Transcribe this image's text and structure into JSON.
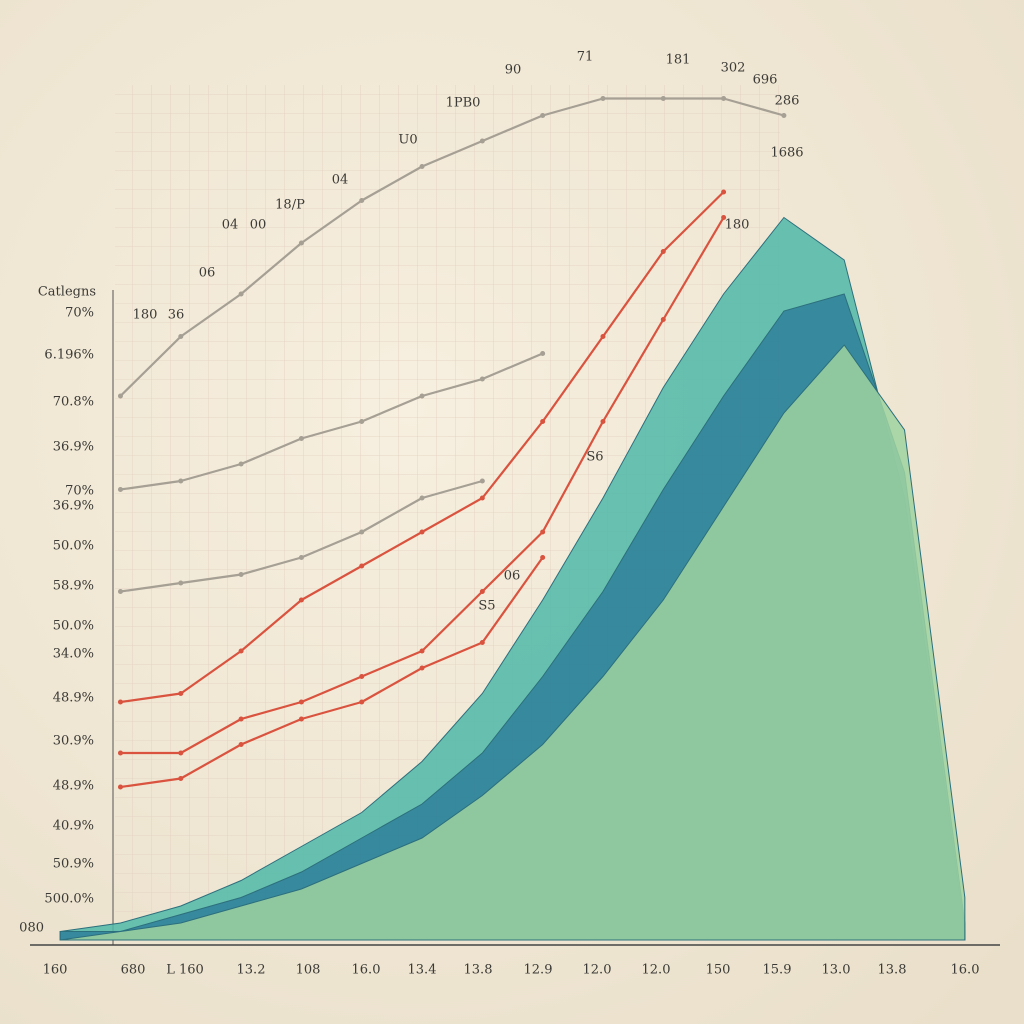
{
  "chart_data": {
    "type": "line",
    "categories": [
      "160",
      "680",
      "L 160",
      "13.2",
      "108",
      "16.0",
      "13.4",
      "13.8",
      "12.9",
      "12.0",
      "12.0",
      "150",
      "15.9",
      "13.0",
      "13.8",
      "16.0"
    ],
    "y_labels": [
      "Catlegns",
      "70%",
      "6.196%",
      "70.8%",
      "36.9%",
      "70%",
      "36.9%",
      "50.0%",
      "58.9%",
      "50.0%",
      "34.0%",
      "48.9%",
      "30.9%",
      "48.9%",
      "40.9%",
      "50.9%",
      "500.0%",
      "080"
    ],
    "annotations": [
      "90",
      "71",
      "181",
      "302",
      "696",
      "286",
      "1PB0",
      "U0",
      "04",
      "18/P",
      "04",
      "00",
      "06",
      "36",
      "180",
      "1686",
      "180",
      "S6",
      "06",
      "S5"
    ],
    "ylim": [
      0,
      100
    ],
    "series": [
      {
        "color": "#a59f94",
        "kind": "line",
        "values": [
          null,
          64,
          71,
          76,
          82,
          87,
          91,
          94,
          97,
          99,
          99,
          99,
          97,
          null,
          null,
          null
        ]
      },
      {
        "color": "#a59f94",
        "kind": "line",
        "values": [
          null,
          53,
          54,
          56,
          59,
          61,
          64,
          66,
          69,
          null,
          null,
          null,
          null,
          null,
          null,
          null
        ]
      },
      {
        "color": "#a59f94",
        "kind": "line",
        "values": [
          null,
          41,
          42,
          43,
          45,
          48,
          52,
          54,
          null,
          null,
          null,
          null,
          null,
          null,
          null,
          null
        ]
      },
      {
        "color": "#d9533f",
        "kind": "line",
        "values": [
          null,
          28,
          29,
          34,
          40,
          44,
          48,
          52,
          61,
          71,
          81,
          88,
          null,
          null,
          null,
          null
        ]
      },
      {
        "color": "#d9533f",
        "kind": "line",
        "values": [
          null,
          22,
          22,
          26,
          28,
          31,
          34,
          41,
          48,
          61,
          73,
          85,
          null,
          null,
          null,
          null
        ]
      },
      {
        "color": "#d9533f",
        "kind": "line",
        "values": [
          null,
          18,
          19,
          23,
          26,
          28,
          32,
          35,
          45,
          null,
          null,
          null,
          null,
          null,
          null,
          null
        ]
      },
      {
        "color": "#4fb8a8",
        "kind": "area",
        "values": [
          1,
          2,
          4,
          7,
          11,
          15,
          21,
          29,
          40,
          52,
          65,
          76,
          85,
          80,
          52,
          1
        ]
      },
      {
        "color": "#2f7f9a",
        "kind": "area",
        "values": [
          1,
          1,
          3,
          5,
          8,
          12,
          16,
          22,
          31,
          41,
          53,
          64,
          74,
          76,
          55,
          2
        ]
      },
      {
        "color": "#9fd3a0",
        "kind": "area",
        "values": [
          0,
          1,
          2,
          4,
          6,
          9,
          12,
          17,
          23,
          31,
          40,
          51,
          62,
          70,
          60,
          5
        ]
      }
    ]
  }
}
